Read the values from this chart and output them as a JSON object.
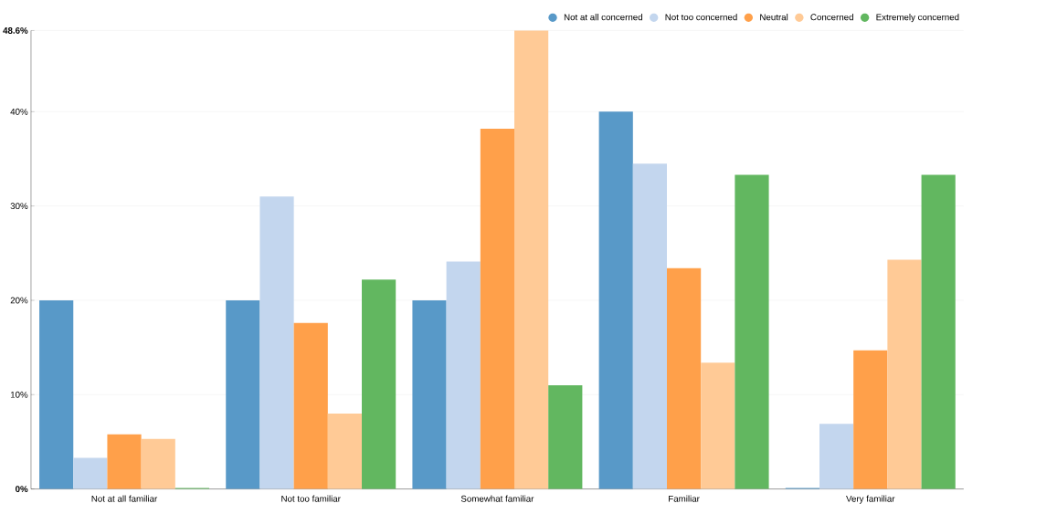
{
  "chart_data": {
    "type": "bar",
    "categories": [
      "Not at all familiar",
      "Not too familiar",
      "Somewhat familiar",
      "Familiar",
      "Very familiar"
    ],
    "series": [
      {
        "name": "Not at all concerned",
        "color": "#5899c8",
        "values": [
          20.0,
          20.0,
          20.0,
          40.0,
          0.1
        ]
      },
      {
        "name": "Not too concerned",
        "color": "#c3d6ee",
        "values": [
          3.3,
          31.0,
          24.1,
          34.5,
          6.9
        ]
      },
      {
        "name": "Neutral",
        "color": "#ffa04a",
        "values": [
          5.8,
          17.6,
          38.2,
          23.4,
          14.7
        ]
      },
      {
        "name": "Concerned",
        "color": "#ffca96",
        "values": [
          5.3,
          8.0,
          48.6,
          13.4,
          24.3
        ]
      },
      {
        "name": "Extremely concerned",
        "color": "#62b760",
        "values": [
          0.1,
          22.2,
          11.0,
          33.3,
          33.3
        ]
      }
    ],
    "ylim": [
      0,
      48.6
    ],
    "yticks": [
      {
        "value": 0,
        "label": "**0%**"
      },
      {
        "value": 10,
        "label": "10%"
      },
      {
        "value": 20,
        "label": "20%"
      },
      {
        "value": 30,
        "label": "30%"
      },
      {
        "value": 40,
        "label": "40%"
      },
      {
        "value": 48.6,
        "label": "**48.6%**"
      }
    ],
    "grid": "y",
    "legend": "top right"
  }
}
